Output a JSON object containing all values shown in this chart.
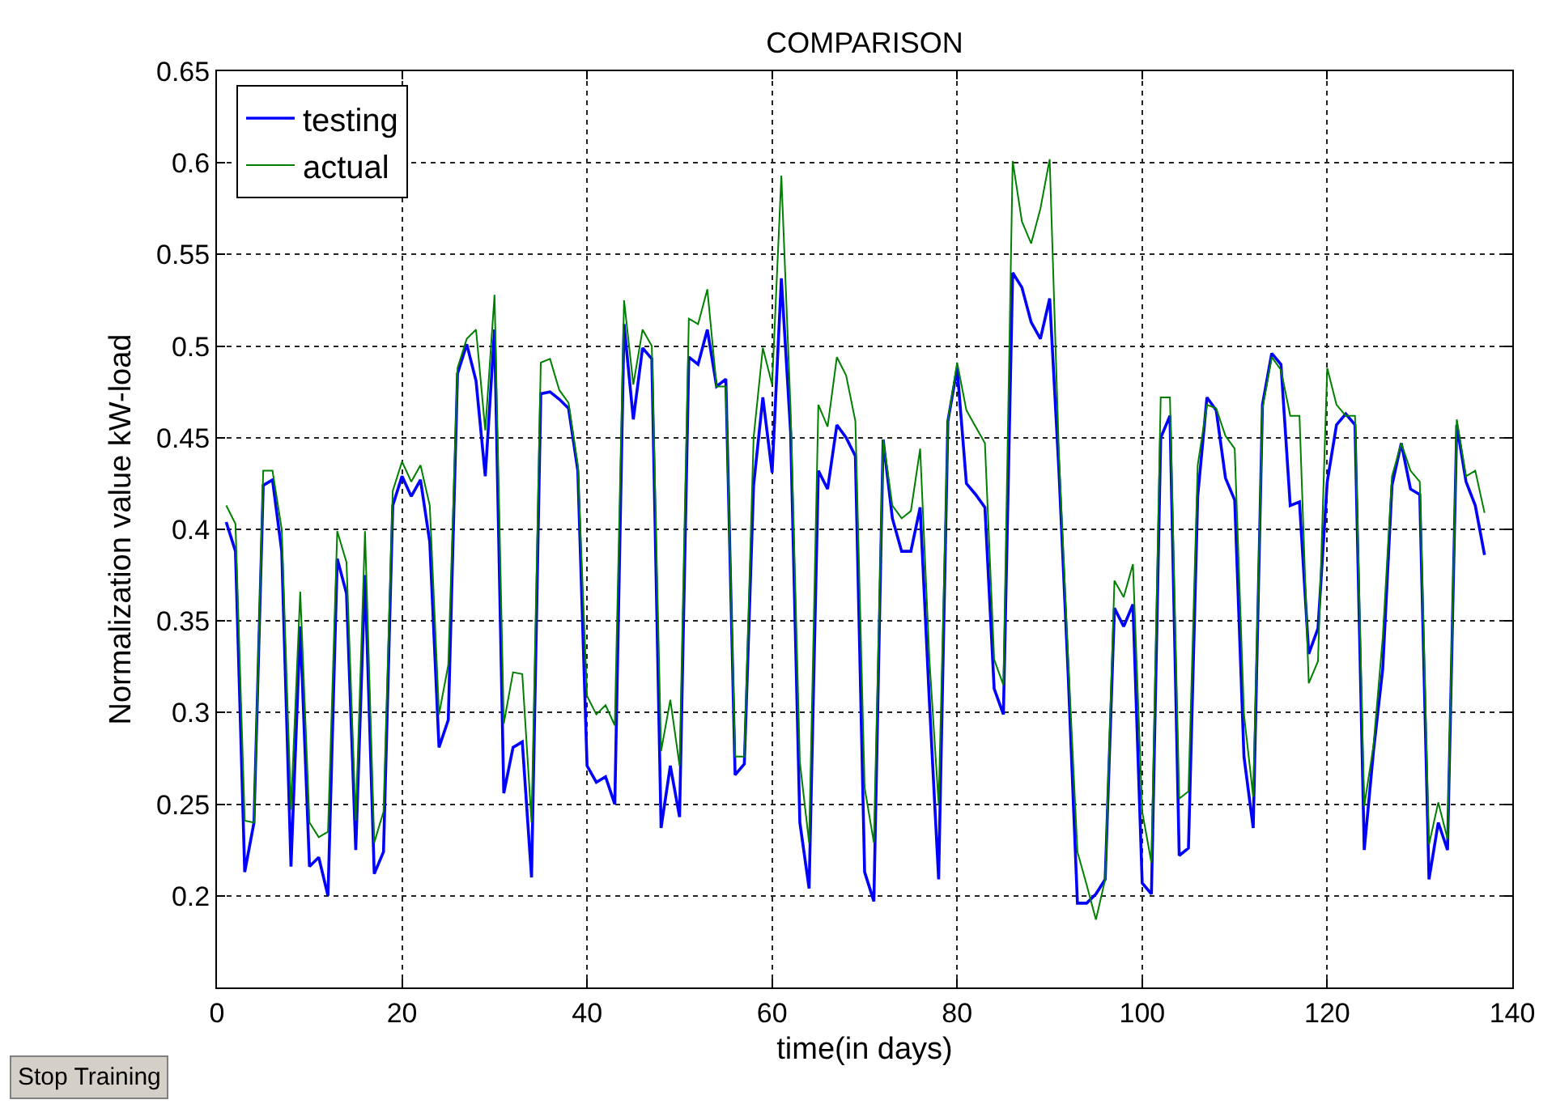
{
  "chart_data": {
    "type": "line",
    "title": "COMPARISON",
    "xlabel": "time(in days)",
    "ylabel": "Normalization value kW-load",
    "x": [
      1,
      2,
      3,
      4,
      5,
      6,
      7,
      8,
      9,
      10,
      11,
      12,
      13,
      14,
      15,
      16,
      17,
      18,
      19,
      20,
      21,
      22,
      23,
      24,
      25,
      26,
      27,
      28,
      29,
      30,
      31,
      32,
      33,
      34,
      35,
      36,
      37,
      38,
      39,
      40,
      41,
      42,
      43,
      44,
      45,
      46,
      47,
      48,
      49,
      50,
      51,
      52,
      53,
      54,
      55,
      56,
      57,
      58,
      59,
      60,
      61,
      62,
      63,
      64,
      65,
      66,
      67,
      68,
      69,
      70,
      71,
      72,
      73,
      74,
      75,
      76,
      77,
      78,
      79,
      80,
      81,
      82,
      83,
      84,
      85,
      86,
      87,
      88,
      89,
      90,
      91,
      92,
      93,
      94,
      95,
      96,
      97,
      98,
      99,
      100,
      101,
      102,
      103,
      104,
      105,
      106,
      107,
      108,
      109,
      110,
      111,
      112,
      113,
      114,
      115,
      116,
      117,
      118,
      119,
      120,
      121,
      122,
      123,
      124,
      125,
      126,
      127,
      128,
      129,
      130,
      131,
      132,
      133,
      134,
      135,
      136,
      137
    ],
    "series": [
      {
        "name": "testing",
        "color": "#0000ff",
        "values": [
          0.404,
          0.388,
          0.213,
          0.24,
          0.424,
          0.427,
          0.388,
          0.216,
          0.347,
          0.216,
          0.221,
          0.2,
          0.384,
          0.365,
          0.225,
          0.375,
          0.212,
          0.224,
          0.413,
          0.429,
          0.418,
          0.427,
          0.393,
          0.281,
          0.296,
          0.485,
          0.501,
          0.481,
          0.429,
          0.509,
          0.256,
          0.281,
          0.284,
          0.21,
          0.474,
          0.475,
          0.471,
          0.466,
          0.432,
          0.271,
          0.262,
          0.265,
          0.25,
          0.512,
          0.46,
          0.499,
          0.493,
          0.237,
          0.271,
          0.243,
          0.494,
          0.49,
          0.509,
          0.478,
          0.482,
          0.266,
          0.272,
          0.424,
          0.472,
          0.431,
          0.537,
          0.453,
          0.24,
          0.204,
          0.432,
          0.422,
          0.457,
          0.45,
          0.44,
          0.213,
          0.197,
          0.449,
          0.406,
          0.388,
          0.388,
          0.412,
          0.306,
          0.209,
          0.459,
          0.488,
          0.425,
          0.419,
          0.412,
          0.313,
          0.299,
          0.54,
          0.532,
          0.513,
          0.504,
          0.526,
          0.432,
          0.321,
          0.196,
          0.196,
          0.201,
          0.209,
          0.357,
          0.347,
          0.359,
          0.207,
          0.201,
          0.45,
          0.462,
          0.222,
          0.226,
          0.418,
          0.472,
          0.465,
          0.428,
          0.416,
          0.276,
          0.237,
          0.468,
          0.496,
          0.49,
          0.413,
          0.415,
          0.332,
          0.346,
          0.426,
          0.457,
          0.463,
          0.457,
          0.225,
          0.279,
          0.324,
          0.424,
          0.447,
          0.422,
          0.419,
          0.209,
          0.24,
          0.225,
          0.457,
          0.426,
          0.413,
          0.386
        ]
      },
      {
        "name": "actual",
        "color": "#008000",
        "values": [
          0.413,
          0.403,
          0.241,
          0.24,
          0.432,
          0.432,
          0.4,
          0.247,
          0.366,
          0.24,
          0.232,
          0.235,
          0.399,
          0.382,
          0.241,
          0.399,
          0.229,
          0.246,
          0.421,
          0.437,
          0.426,
          0.435,
          0.413,
          0.299,
          0.326,
          0.488,
          0.504,
          0.509,
          0.454,
          0.528,
          0.294,
          0.322,
          0.321,
          0.24,
          0.491,
          0.493,
          0.476,
          0.469,
          0.435,
          0.309,
          0.299,
          0.304,
          0.293,
          0.525,
          0.479,
          0.509,
          0.5,
          0.279,
          0.307,
          0.271,
          0.515,
          0.512,
          0.531,
          0.478,
          0.478,
          0.276,
          0.276,
          0.45,
          0.499,
          0.479,
          0.593,
          0.465,
          0.273,
          0.229,
          0.468,
          0.456,
          0.494,
          0.484,
          0.459,
          0.259,
          0.229,
          0.449,
          0.413,
          0.406,
          0.41,
          0.444,
          0.329,
          0.25,
          0.459,
          0.491,
          0.465,
          0.456,
          0.447,
          0.329,
          0.315,
          0.601,
          0.568,
          0.556,
          0.575,
          0.602,
          0.441,
          0.329,
          0.224,
          0.206,
          0.187,
          0.209,
          0.372,
          0.363,
          0.381,
          0.246,
          0.218,
          0.472,
          0.472,
          0.253,
          0.257,
          0.435,
          0.468,
          0.466,
          0.451,
          0.444,
          0.299,
          0.254,
          0.466,
          0.494,
          0.487,
          0.462,
          0.462,
          0.316,
          0.328,
          0.488,
          0.468,
          0.462,
          0.462,
          0.249,
          0.282,
          0.341,
          0.429,
          0.447,
          0.432,
          0.426,
          0.228,
          0.251,
          0.231,
          0.46,
          0.429,
          0.432,
          0.409
        ]
      }
    ],
    "xlim": [
      0,
      140
    ],
    "xticks": [
      0,
      20,
      40,
      60,
      80,
      100,
      120,
      140
    ],
    "ylim": [
      0.15,
      0.65
    ],
    "yticks": [
      0.2,
      0.25,
      0.3,
      0.35,
      0.4,
      0.45,
      0.5,
      0.55,
      0.6,
      0.65
    ],
    "grid": true,
    "legend": "top left",
    "line_style": "solid",
    "annotations": [
      "Stop Training"
    ]
  }
}
